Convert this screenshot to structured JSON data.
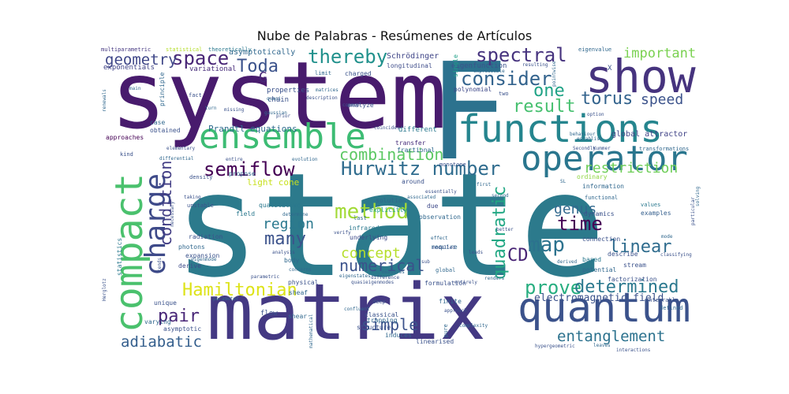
{
  "chart_data": {
    "type": "wordcloud",
    "title": "Nube de Palabras - Resúmenes de Artículos",
    "words": [
      {
        "text": "state",
        "color": "#2c7a8c"
      },
      {
        "text": "F",
        "color": "#2c728e"
      },
      {
        "text": "system",
        "color": "#481b6d"
      },
      {
        "text": "matrix",
        "color": "#443983"
      },
      {
        "text": "show",
        "color": "#46337e"
      },
      {
        "text": "functions",
        "color": "#25858e"
      },
      {
        "text": "quantum",
        "color": "#3b528b"
      },
      {
        "text": "ensemble",
        "color": "#3dbc74"
      },
      {
        "text": "operator",
        "color": "#2a768e"
      },
      {
        "text": "compact",
        "color": "#4ac16d"
      },
      {
        "text": "charge",
        "color": "#3e4a89"
      },
      {
        "text": "Hurwitz number",
        "color": "#2f6c8e"
      },
      {
        "text": "semiflow",
        "color": "#440154"
      },
      {
        "text": "method",
        "color": "#a2da37"
      },
      {
        "text": "space",
        "color": "#482576"
      },
      {
        "text": "spectral",
        "color": "#46337e"
      },
      {
        "text": "thereby",
        "color": "#21918c"
      },
      {
        "text": "consider",
        "color": "#33638d"
      },
      {
        "text": "Toda",
        "color": "#3b528b"
      },
      {
        "text": "geometry",
        "color": "#3f4788"
      },
      {
        "text": "one",
        "color": "#20a386"
      },
      {
        "text": "torus",
        "color": "#33638d"
      },
      {
        "text": "speed",
        "color": "#3b528b"
      },
      {
        "text": "result",
        "color": "#46c06f"
      },
      {
        "text": "important",
        "color": "#7ad151"
      },
      {
        "text": "G",
        "color": "#482878"
      },
      {
        "text": "condition",
        "color": "#433e85"
      },
      {
        "text": "combination",
        "color": "#5cc863"
      },
      {
        "text": "restriction",
        "color": "#6ece58"
      },
      {
        "text": "time",
        "color": "#440154"
      },
      {
        "text": "genus",
        "color": "#31688e"
      },
      {
        "text": "map",
        "color": "#2c728e"
      },
      {
        "text": "linear",
        "color": "#2f6c8e"
      },
      {
        "text": "quadratic",
        "color": "#22a884"
      },
      {
        "text": "CD",
        "color": "#482475"
      },
      {
        "text": "concept",
        "color": "#b5de2b"
      },
      {
        "text": "many",
        "color": "#3b528b"
      },
      {
        "text": "region",
        "color": "#2a788e"
      },
      {
        "text": "prove",
        "color": "#28ae80"
      },
      {
        "text": "determined",
        "color": "#2a788e"
      },
      {
        "text": "numerical",
        "color": "#3b528b"
      },
      {
        "text": "Hamiltonian",
        "color": "#dde318"
      },
      {
        "text": "pair",
        "color": "#482677"
      },
      {
        "text": "simple",
        "color": "#3b528b"
      },
      {
        "text": "adiabatic",
        "color": "#355f8d"
      },
      {
        "text": "entanglement",
        "color": "#2c728e"
      },
      {
        "text": "electromagnetic field",
        "color": "#3b528b"
      },
      {
        "text": "Prandtl equations",
        "color": "#2f6c8e"
      },
      {
        "text": "global attractor",
        "color": "#414487"
      },
      {
        "text": "light cone",
        "color": "#c8e020"
      },
      {
        "text": "Schrödinger",
        "color": "#404688"
      },
      {
        "text": "longitudinal",
        "color": "#3e4c8a"
      },
      {
        "text": "eigenfunction",
        "color": "#3b528b"
      },
      {
        "text": "variational",
        "color": "#472c7a"
      },
      {
        "text": "exponentials",
        "color": "#414487"
      },
      {
        "text": "asymptotically",
        "color": "#31688e"
      },
      {
        "text": "multiparametric",
        "color": "#453781"
      },
      {
        "text": "statistical",
        "color": "#b5de2b"
      },
      {
        "text": "theoretically",
        "color": "#2a788e"
      },
      {
        "text": "eigenvalue",
        "color": "#31688e"
      },
      {
        "text": "properties",
        "color": "#3b528b"
      },
      {
        "text": "chain",
        "color": "#3b528b"
      },
      {
        "text": "analyze",
        "color": "#3b528b"
      },
      {
        "text": "polynomial",
        "color": "#3e4989"
      },
      {
        "text": "single",
        "color": "#1fa088"
      },
      {
        "text": "principle",
        "color": "#31688e"
      },
      {
        "text": "obtained",
        "color": "#3b528b"
      },
      {
        "text": "case",
        "color": "#31688e"
      },
      {
        "text": "approaches",
        "color": "#440154"
      },
      {
        "text": "different",
        "color": "#2a788e"
      },
      {
        "text": "transfer",
        "color": "#472d7b"
      },
      {
        "text": "fractional",
        "color": "#31688e"
      },
      {
        "text": "around",
        "color": "#3b528b"
      },
      {
        "text": "monotone",
        "color": "#3b528b"
      },
      {
        "text": "transformations",
        "color": "#31688e"
      },
      {
        "text": "information",
        "color": "#31688e"
      },
      {
        "text": "ordinary",
        "color": "#90d743"
      },
      {
        "text": "qualitative",
        "color": "#2a788e"
      },
      {
        "text": "solution",
        "color": "#31688e"
      },
      {
        "text": "explicitly",
        "color": "#1f9e89"
      },
      {
        "text": "due",
        "color": "#3e4a89"
      },
      {
        "text": "observation",
        "color": "#31688e"
      },
      {
        "text": "dynamics",
        "color": "#3b528b"
      },
      {
        "text": "values",
        "color": "#2a788e"
      },
      {
        "text": "examples",
        "color": "#355f8d"
      },
      {
        "text": "functional",
        "color": "#31688e"
      },
      {
        "text": "field",
        "color": "#2a788e"
      },
      {
        "text": "infrared",
        "color": "#2a788e"
      },
      {
        "text": "underlying",
        "color": "#3e4a89"
      },
      {
        "text": "radiation",
        "color": "#3b528b"
      },
      {
        "text": "photons",
        "color": "#31688e"
      },
      {
        "text": "expansion",
        "color": "#3b528b"
      },
      {
        "text": "derive",
        "color": "#3e4a89"
      },
      {
        "text": "require",
        "color": "#31688e"
      },
      {
        "text": "connection",
        "color": "#3b528b"
      },
      {
        "text": "describe",
        "color": "#3b528b"
      },
      {
        "text": "based",
        "color": "#2a788e"
      },
      {
        "text": "stream",
        "color": "#3b528b"
      },
      {
        "text": "potential",
        "color": "#31688e"
      },
      {
        "text": "factorization",
        "color": "#3b528b"
      },
      {
        "text": "body",
        "color": "#31688e"
      },
      {
        "text": "physical",
        "color": "#3b528b"
      },
      {
        "text": "sheaf",
        "color": "#31688e"
      },
      {
        "text": "formulation",
        "color": "#3b528b"
      },
      {
        "text": "unique",
        "color": "#3b528b"
      },
      {
        "text": "asymptotic",
        "color": "#3b528b"
      },
      {
        "text": "varying",
        "color": "#31688e"
      },
      {
        "text": "flow",
        "color": "#3b528b"
      },
      {
        "text": "shear",
        "color": "#31688e"
      },
      {
        "text": "classical",
        "color": "#3b528b"
      },
      {
        "text": "trapping",
        "color": "#31688e"
      },
      {
        "text": "structure",
        "color": "#3b528b"
      },
      {
        "text": "induces",
        "color": "#31688e"
      },
      {
        "text": "linearised",
        "color": "#3b528b"
      },
      {
        "text": "finite",
        "color": "#31688e"
      },
      {
        "text": "integrable",
        "color": "#3b528b"
      },
      {
        "text": "defined",
        "color": "#31688e"
      },
      {
        "text": "statistics",
        "color": "#2a788e"
      },
      {
        "text": "charged",
        "color": "#3b528b"
      },
      {
        "text": "limit",
        "color": "#31688e"
      },
      {
        "text": "fact",
        "color": "#3b528b"
      },
      {
        "text": "kind",
        "color": "#3b528b"
      },
      {
        "text": "propose",
        "color": "#31688e"
      },
      {
        "text": "unstable",
        "color": "#3b528b"
      },
      {
        "text": "last",
        "color": "#31688e"
      },
      {
        "text": "elementary",
        "color": "#3b528b"
      },
      {
        "text": "behaviour",
        "color": "#31688e"
      },
      {
        "text": "Secondly",
        "color": "#3b528b"
      },
      {
        "text": "hypergeometric",
        "color": "#3b528b"
      },
      {
        "text": "pure",
        "color": "#31688e"
      },
      {
        "text": "density",
        "color": "#3b528b"
      },
      {
        "text": "main",
        "color": "#31688e"
      },
      {
        "text": "deep",
        "color": "#3b528b"
      },
      {
        "text": "matrices",
        "color": "#31688e"
      },
      {
        "text": "common",
        "color": "#3b528b"
      },
      {
        "text": "evolution",
        "color": "#31688e"
      },
      {
        "text": "two",
        "color": "#3b528b"
      },
      {
        "text": "global",
        "color": "#31688e"
      },
      {
        "text": "taking",
        "color": "#3b528b"
      },
      {
        "text": "derived",
        "color": "#31688e"
      },
      {
        "text": "entirely",
        "color": "#3b528b"
      },
      {
        "text": "confluent",
        "color": "#31688e"
      },
      {
        "text": "approach",
        "color": "#3b528b"
      },
      {
        "text": "measures",
        "color": "#31688e"
      },
      {
        "text": "difference",
        "color": "#3b528b"
      },
      {
        "text": "renders",
        "color": "#31688e"
      },
      {
        "text": "leads",
        "color": "#3b528b"
      },
      {
        "text": "effect",
        "color": "#31688e"
      },
      {
        "text": "modelled",
        "color": "#3b528b"
      },
      {
        "text": "associated",
        "color": "#31688e"
      },
      {
        "text": "essentially",
        "color": "#3b528b"
      },
      {
        "text": "first",
        "color": "#31688e"
      },
      {
        "text": "verify",
        "color": "#3b528b"
      },
      {
        "text": "second",
        "color": "#31688e"
      },
      {
        "text": "better",
        "color": "#3b528b"
      },
      {
        "text": "mode",
        "color": "#31688e"
      },
      {
        "text": "classifying",
        "color": "#3b528b"
      },
      {
        "text": "solving",
        "color": "#31688e"
      },
      {
        "text": "particular",
        "color": "#3b528b"
      },
      {
        "text": "leaves",
        "color": "#31688e"
      },
      {
        "text": "interactions",
        "color": "#3b528b"
      },
      {
        "text": "complexity",
        "color": "#31688e"
      },
      {
        "text": "option",
        "color": "#3b528b"
      },
      {
        "text": "establish",
        "color": "#31688e"
      },
      {
        "text": "Kummer",
        "color": "#3b528b"
      },
      {
        "text": "pointwise",
        "color": "#31688e"
      },
      {
        "text": "resulting",
        "color": "#3b528b"
      },
      {
        "text": "expressible",
        "color": "#31688e"
      },
      {
        "text": "coincides",
        "color": "#3b528b"
      },
      {
        "text": "gaussian",
        "color": "#31688e"
      },
      {
        "text": "missing",
        "color": "#3b528b"
      },
      {
        "text": "turn",
        "color": "#31688e"
      },
      {
        "text": "prior",
        "color": "#3b528b"
      },
      {
        "text": "quasi",
        "color": "#31688e"
      },
      {
        "text": "description",
        "color": "#3b528b"
      },
      {
        "text": "renewals",
        "color": "#31688e"
      },
      {
        "text": "necessary",
        "color": "#3b528b"
      },
      {
        "text": "differential",
        "color": "#31688e"
      },
      {
        "text": "entire",
        "color": "#3b528b"
      },
      {
        "text": "parameter",
        "color": "#31688e"
      },
      {
        "text": "parametric",
        "color": "#3b528b"
      },
      {
        "text": "concerns",
        "color": "#31688e"
      },
      {
        "text": "Herglotz",
        "color": "#3b528b"
      },
      {
        "text": "eigenmode",
        "color": "#31688e"
      },
      {
        "text": "tends",
        "color": "#3b528b"
      },
      {
        "text": "mathematical",
        "color": "#31688e"
      },
      {
        "text": "quasieigenmodes",
        "color": "#3b528b"
      },
      {
        "text": "eigenstates",
        "color": "#31688e"
      },
      {
        "text": "analysis",
        "color": "#3b528b"
      },
      {
        "text": "determine",
        "color": "#31688e"
      },
      {
        "text": "sub",
        "color": "#3b528b"
      },
      {
        "text": "SL",
        "color": "#31688e"
      },
      {
        "text": "X",
        "color": "#3b528b"
      }
    ]
  }
}
